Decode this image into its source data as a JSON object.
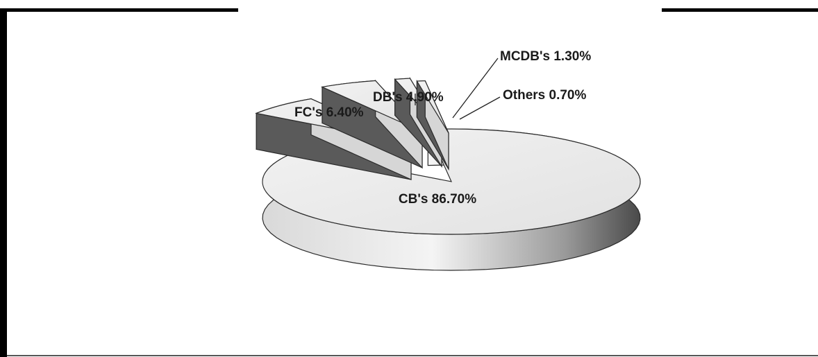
{
  "chart_data": {
    "type": "pie",
    "style": "3d-exploded",
    "slices": [
      {
        "name": "CB's",
        "value": 86.7,
        "label": "CB's 86.70%"
      },
      {
        "name": "FC's",
        "value": 6.4,
        "label": "FC's 6.40%"
      },
      {
        "name": "DB's",
        "value": 4.9,
        "label": "DB's 4.90%"
      },
      {
        "name": "MCDB's",
        "value": 1.3,
        "label": "MCDB's 1.30%"
      },
      {
        "name": "Others",
        "value": 0.7,
        "label": "Others 0.70%"
      }
    ],
    "title": "",
    "legend": "none",
    "colors": {
      "top": "#ececec",
      "side_light": "#d6d6d6",
      "side_dark": "#5a5a5a",
      "outline": "#2a2a2a"
    }
  }
}
